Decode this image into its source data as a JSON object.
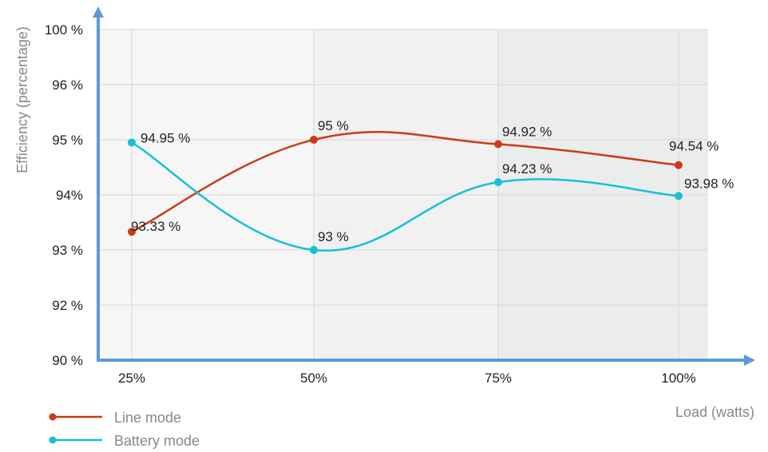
{
  "chart_data": {
    "type": "line",
    "categories": [
      "25%",
      "50%",
      "75%",
      "100%"
    ],
    "series": [
      {
        "name": "Line mode",
        "values": [
          93.33,
          95,
          94.92,
          94.54
        ],
        "labels": [
          "93.33 %",
          "95 %",
          "94.92 %",
          "94.54 %"
        ],
        "color": "#cc3a17"
      },
      {
        "name": "Battery mode",
        "values": [
          94.95,
          93,
          94.23,
          93.98
        ],
        "labels": [
          "94.95 %",
          "93 %",
          "94.23 %",
          "93.98 %"
        ],
        "color": "#16c0d6"
      }
    ],
    "y_ticks": [
      {
        "value": 90,
        "label": "90 %"
      },
      {
        "value": 92,
        "label": "92 %"
      },
      {
        "value": 93,
        "label": "93 %"
      },
      {
        "value": 94,
        "label": "94%"
      },
      {
        "value": 95,
        "label": "95 %"
      },
      {
        "value": 96,
        "label": "96 %"
      },
      {
        "value": 100,
        "label": "100 %"
      }
    ],
    "xlabel": "Load (watts)",
    "ylabel": "Efficiency (percentage)",
    "grid": true,
    "legend_position": "bottom-left",
    "colors": {
      "axis": "#5b9bd5",
      "band_light": "#f6f6f6",
      "band_mid": "#f1f1f1",
      "band_dark": "#ebedec"
    }
  }
}
